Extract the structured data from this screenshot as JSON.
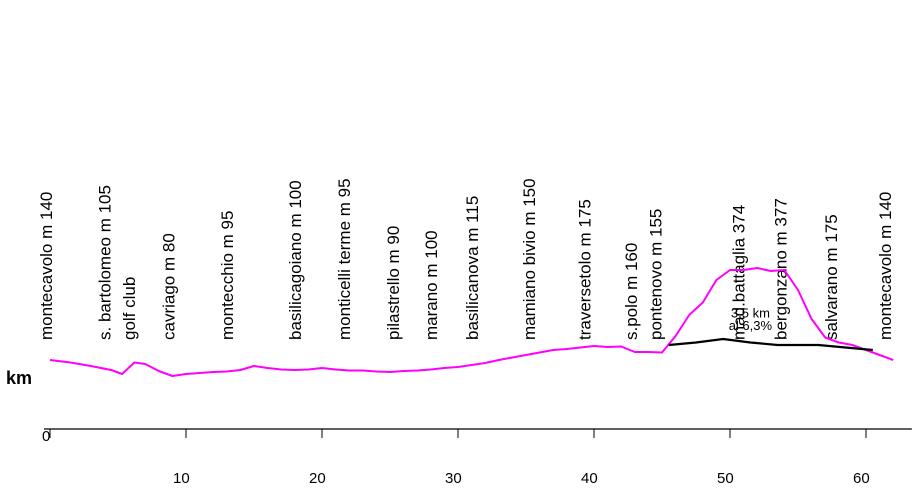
{
  "chart_data": {
    "type": "line",
    "title": "",
    "xlabel": "",
    "ylabel": "km",
    "xlim": [
      0,
      63
    ],
    "x_ticks": [
      0,
      10,
      20,
      30,
      40,
      50,
      60
    ],
    "x_tick_labels": [
      "0",
      "10",
      "20",
      "30",
      "40",
      "50",
      "60"
    ],
    "grid": false,
    "series": [
      {
        "color": "#ff00ff",
        "points": [
          [
            0,
            140
          ],
          [
            1.5,
            135
          ],
          [
            3,
            128
          ],
          [
            4.5,
            120
          ],
          [
            5.3,
            112
          ],
          [
            6.2,
            135
          ],
          [
            7,
            132
          ],
          [
            8,
            118
          ],
          [
            9,
            108
          ],
          [
            10,
            112
          ],
          [
            11,
            114
          ],
          [
            12,
            116
          ],
          [
            13,
            117
          ],
          [
            14,
            120
          ],
          [
            15,
            128
          ],
          [
            16,
            124
          ],
          [
            17,
            121
          ],
          [
            18,
            120
          ],
          [
            19,
            121
          ],
          [
            20,
            124
          ],
          [
            21,
            121
          ],
          [
            22,
            119
          ],
          [
            23,
            119
          ],
          [
            24,
            117
          ],
          [
            25,
            116
          ],
          [
            26,
            118
          ],
          [
            27,
            119
          ],
          [
            28,
            121
          ],
          [
            29,
            124
          ],
          [
            30,
            126
          ],
          [
            31,
            130
          ],
          [
            32,
            134
          ],
          [
            33,
            140
          ],
          [
            34,
            145
          ],
          [
            35,
            150
          ],
          [
            36,
            155
          ],
          [
            37,
            160
          ],
          [
            38,
            162
          ],
          [
            39,
            165
          ],
          [
            40,
            168
          ],
          [
            41,
            166
          ],
          [
            42,
            167
          ],
          [
            43,
            156
          ],
          [
            44,
            156
          ],
          [
            45,
            155
          ],
          [
            46,
            188
          ],
          [
            47,
            230
          ],
          [
            48,
            255
          ],
          [
            49,
            300
          ],
          [
            50,
            320
          ],
          [
            51,
            320
          ],
          [
            52,
            324
          ],
          [
            53,
            318
          ],
          [
            54,
            320
          ],
          [
            55,
            280
          ],
          [
            56,
            222
          ],
          [
            57,
            185
          ],
          [
            58,
            175
          ],
          [
            59,
            170
          ],
          [
            60,
            160
          ],
          [
            61,
            150
          ],
          [
            62,
            140
          ]
        ]
      },
      {
        "color": "#000000",
        "points": [
          [
            45.5,
            170
          ],
          [
            47.5,
            175
          ],
          [
            49.5,
            182
          ],
          [
            51.5,
            175
          ],
          [
            53.5,
            170
          ],
          [
            56.5,
            170
          ],
          [
            58.5,
            165
          ],
          [
            60.5,
            160
          ]
        ]
      }
    ],
    "annotations": [
      {
        "text": "3,5 km",
        "x": 51.5,
        "y": 225
      },
      {
        "text": "al 6,3%",
        "x": 51.5,
        "y": 200
      }
    ],
    "locations": [
      {
        "label": "montecavolo m 140",
        "km": 0.3
      },
      {
        "label": "s. bartolomeo m 105",
        "km": 4.6
      },
      {
        "label": "golf club",
        "km": 6.4
      },
      {
        "label": "cavriago m 80",
        "km": 9.3
      },
      {
        "label": "montecchio m 95",
        "km": 13.6
      },
      {
        "label": "basilicagoiano m 100",
        "km": 18.6
      },
      {
        "label": "monticelli terme m 95",
        "km": 22.2
      },
      {
        "label": "pilastrello m 90",
        "km": 25.8
      },
      {
        "label": "marano m 100",
        "km": 28.6
      },
      {
        "label": "basilicanova m 115",
        "km": 31.6
      },
      {
        "label": "mamiano bivio m 150",
        "km": 35.8
      },
      {
        "label": "traversetolo m 175",
        "km": 39.9
      },
      {
        "label": "s.polo m 160",
        "km": 43.3
      },
      {
        "label": "pontenovo m 155",
        "km": 45.1
      },
      {
        "label": "mad.battaglia 374",
        "km": 51.2
      },
      {
        "label": "bergonzano m 377",
        "km": 54.3
      },
      {
        "label": "salvarano m 175",
        "km": 58.0
      },
      {
        "label": "montecavolo m 140",
        "km": 62.0
      }
    ]
  }
}
